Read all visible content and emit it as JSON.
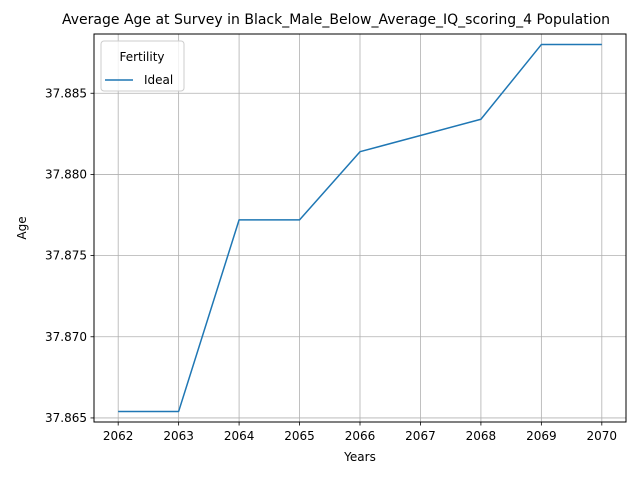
{
  "chart_data": {
    "type": "line",
    "title": "Average Age at Survey in Black_Male_Below_Average_IQ_scoring_4 Population",
    "xlabel": "Years",
    "ylabel": "Age",
    "x": [
      2062,
      2063,
      2064,
      2065,
      2066,
      2067,
      2068,
      2069,
      2070
    ],
    "x_ticks": [
      "2062",
      "2063",
      "2064",
      "2065",
      "2066",
      "2067",
      "2068",
      "2069",
      "2070"
    ],
    "y_ticks": [
      "37.865",
      "37.870",
      "37.875",
      "37.880",
      "37.885"
    ],
    "xlim": [
      2061.6,
      2070.4
    ],
    "ylim": [
      37.86475,
      37.88865
    ],
    "grid": true,
    "legend": {
      "title": "Fertility",
      "placement": "upper-left"
    },
    "series": [
      {
        "name": "Ideal",
        "color": "#1f77b4",
        "values": [
          37.8654,
          37.8654,
          37.8772,
          37.8772,
          37.8814,
          37.8824,
          37.8834,
          37.888,
          37.888
        ]
      }
    ]
  }
}
